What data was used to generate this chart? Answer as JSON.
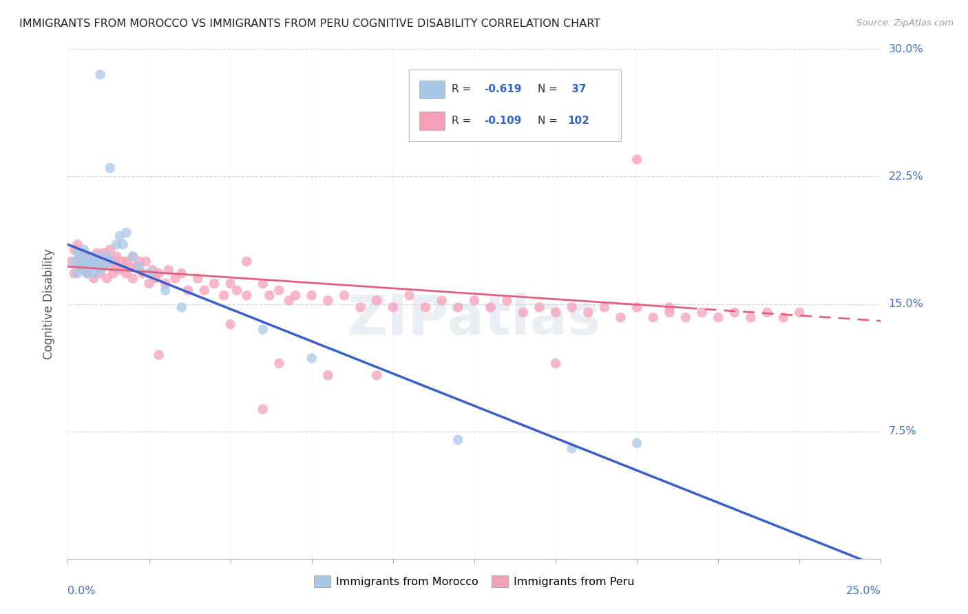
{
  "title": "IMMIGRANTS FROM MOROCCO VS IMMIGRANTS FROM PERU COGNITIVE DISABILITY CORRELATION CHART",
  "source": "Source: ZipAtlas.com",
  "ylabel": "Cognitive Disability",
  "xlim": [
    0.0,
    0.25
  ],
  "ylim": [
    0.0,
    0.3
  ],
  "color_morocco": "#a8c8e8",
  "color_peru": "#f4a0b8",
  "color_morocco_line": "#3a5fc8",
  "color_peru_line": "#e06080",
  "watermark": "ZIPatlas",
  "background_color": "#ffffff",
  "morocco_x": [
    0.002,
    0.003,
    0.003,
    0.004,
    0.004,
    0.005,
    0.005,
    0.005,
    0.006,
    0.006,
    0.007,
    0.007,
    0.008,
    0.008,
    0.009,
    0.009,
    0.01,
    0.01,
    0.011,
    0.012,
    0.013,
    0.015,
    0.016,
    0.017,
    0.018,
    0.02,
    0.022,
    0.025,
    0.03,
    0.035,
    0.06,
    0.075,
    0.12,
    0.155,
    0.175,
    0.01,
    0.013
  ],
  "morocco_y": [
    0.175,
    0.18,
    0.168,
    0.172,
    0.178,
    0.17,
    0.175,
    0.182,
    0.168,
    0.175,
    0.172,
    0.178,
    0.175,
    0.168,
    0.172,
    0.178,
    0.17,
    0.175,
    0.172,
    0.178,
    0.175,
    0.185,
    0.19,
    0.185,
    0.192,
    0.178,
    0.172,
    0.168,
    0.158,
    0.148,
    0.135,
    0.118,
    0.07,
    0.065,
    0.068,
    0.285,
    0.23
  ],
  "peru_x": [
    0.001,
    0.002,
    0.002,
    0.003,
    0.003,
    0.004,
    0.004,
    0.005,
    0.005,
    0.006,
    0.006,
    0.007,
    0.007,
    0.008,
    0.008,
    0.009,
    0.009,
    0.01,
    0.01,
    0.011,
    0.011,
    0.012,
    0.012,
    0.013,
    0.013,
    0.014,
    0.014,
    0.015,
    0.015,
    0.016,
    0.017,
    0.018,
    0.018,
    0.019,
    0.02,
    0.02,
    0.021,
    0.022,
    0.023,
    0.024,
    0.025,
    0.026,
    0.027,
    0.028,
    0.03,
    0.031,
    0.033,
    0.035,
    0.037,
    0.04,
    0.042,
    0.045,
    0.048,
    0.05,
    0.052,
    0.055,
    0.06,
    0.062,
    0.065,
    0.068,
    0.07,
    0.075,
    0.08,
    0.085,
    0.09,
    0.095,
    0.1,
    0.105,
    0.11,
    0.115,
    0.12,
    0.125,
    0.13,
    0.135,
    0.14,
    0.145,
    0.15,
    0.155,
    0.16,
    0.165,
    0.17,
    0.175,
    0.18,
    0.185,
    0.19,
    0.195,
    0.2,
    0.205,
    0.21,
    0.215,
    0.22,
    0.225,
    0.05,
    0.065,
    0.08,
    0.15,
    0.185,
    0.175,
    0.055,
    0.095,
    0.028,
    0.06
  ],
  "peru_y": [
    0.175,
    0.182,
    0.168,
    0.175,
    0.185,
    0.172,
    0.178,
    0.17,
    0.18,
    0.175,
    0.168,
    0.178,
    0.172,
    0.165,
    0.175,
    0.18,
    0.172,
    0.168,
    0.175,
    0.18,
    0.172,
    0.178,
    0.165,
    0.182,
    0.172,
    0.175,
    0.168,
    0.172,
    0.178,
    0.17,
    0.175,
    0.168,
    0.175,
    0.172,
    0.178,
    0.165,
    0.172,
    0.175,
    0.168,
    0.175,
    0.162,
    0.17,
    0.165,
    0.168,
    0.162,
    0.17,
    0.165,
    0.168,
    0.158,
    0.165,
    0.158,
    0.162,
    0.155,
    0.162,
    0.158,
    0.155,
    0.162,
    0.155,
    0.158,
    0.152,
    0.155,
    0.155,
    0.152,
    0.155,
    0.148,
    0.152,
    0.148,
    0.155,
    0.148,
    0.152,
    0.148,
    0.152,
    0.148,
    0.152,
    0.145,
    0.148,
    0.145,
    0.148,
    0.145,
    0.148,
    0.142,
    0.148,
    0.142,
    0.145,
    0.142,
    0.145,
    0.142,
    0.145,
    0.142,
    0.145,
    0.142,
    0.145,
    0.138,
    0.115,
    0.108,
    0.115,
    0.148,
    0.235,
    0.175,
    0.108,
    0.12,
    0.088
  ],
  "morocco_line_x": [
    0.0,
    0.25
  ],
  "morocco_line_y": [
    0.185,
    -0.005
  ],
  "peru_line_x": [
    0.0,
    0.25
  ],
  "peru_line_y": [
    0.172,
    0.14
  ]
}
